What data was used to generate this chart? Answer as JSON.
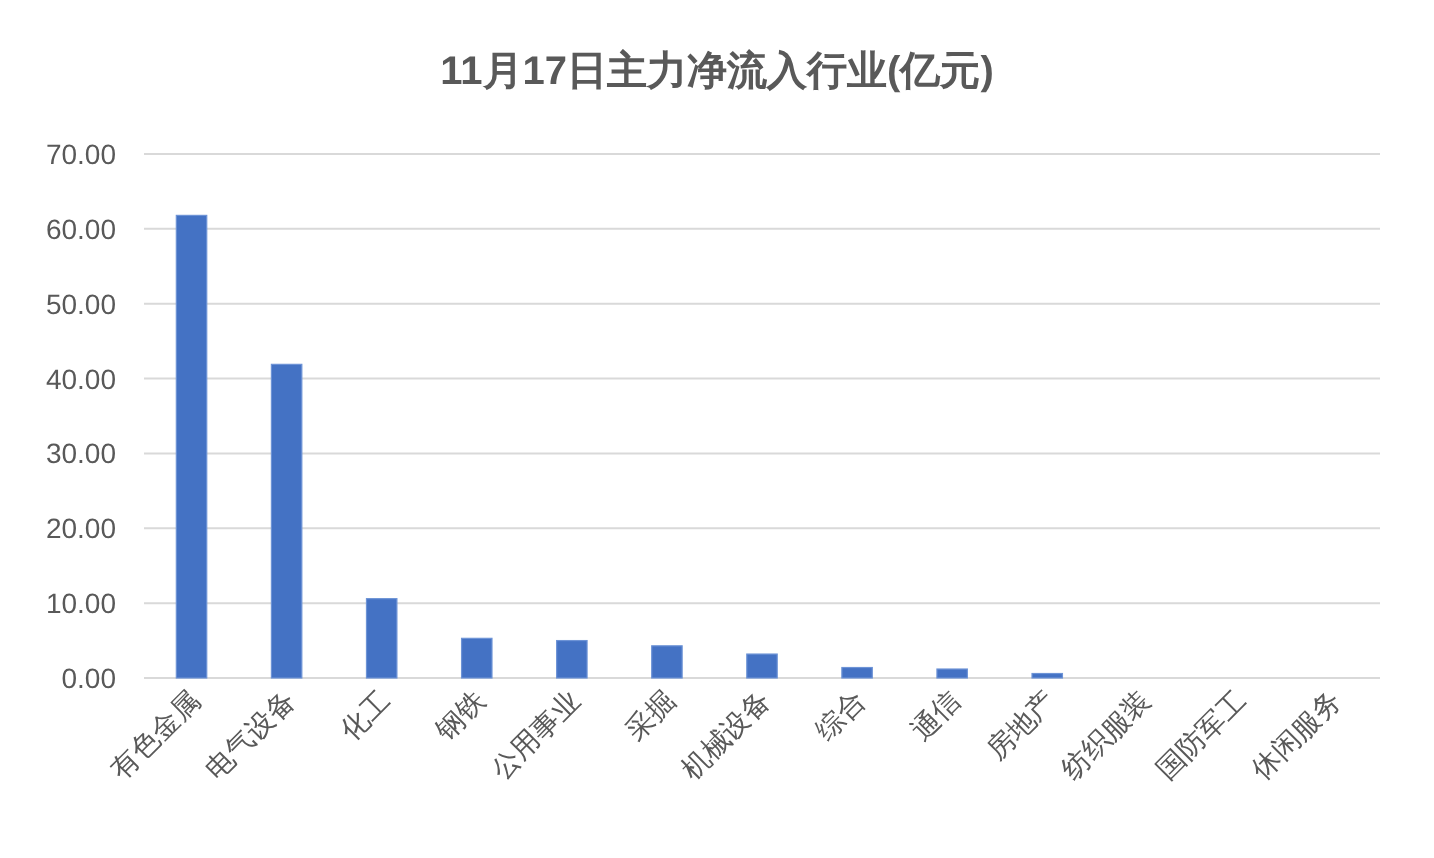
{
  "chart_data": {
    "type": "bar",
    "title": "11月17日主力净流入行业(亿元)",
    "categories": [
      "有色金属",
      "电气设备",
      "化工",
      "钢铁",
      "公用事业",
      "采掘",
      "机械设备",
      "综合",
      "通信",
      "房地产",
      "纺织服装",
      "国防军工",
      "休闲服务"
    ],
    "values": [
      61.8,
      41.9,
      10.6,
      5.3,
      5.0,
      4.3,
      3.2,
      1.4,
      1.2,
      0.6,
      0,
      0,
      0
    ],
    "color": "#4472c4",
    "ylim": [
      0,
      70
    ],
    "yticks": [
      {
        "value": 0,
        "label": "0.00"
      },
      {
        "value": 10,
        "label": "10.00"
      },
      {
        "value": 20,
        "label": "20.00"
      },
      {
        "value": 30,
        "label": "30.00"
      },
      {
        "value": 40,
        "label": "40.00"
      },
      {
        "value": 50,
        "label": "50.00"
      },
      {
        "value": 60,
        "label": "60.00"
      },
      {
        "value": 70,
        "label": "70.00"
      }
    ],
    "grid": "y"
  }
}
